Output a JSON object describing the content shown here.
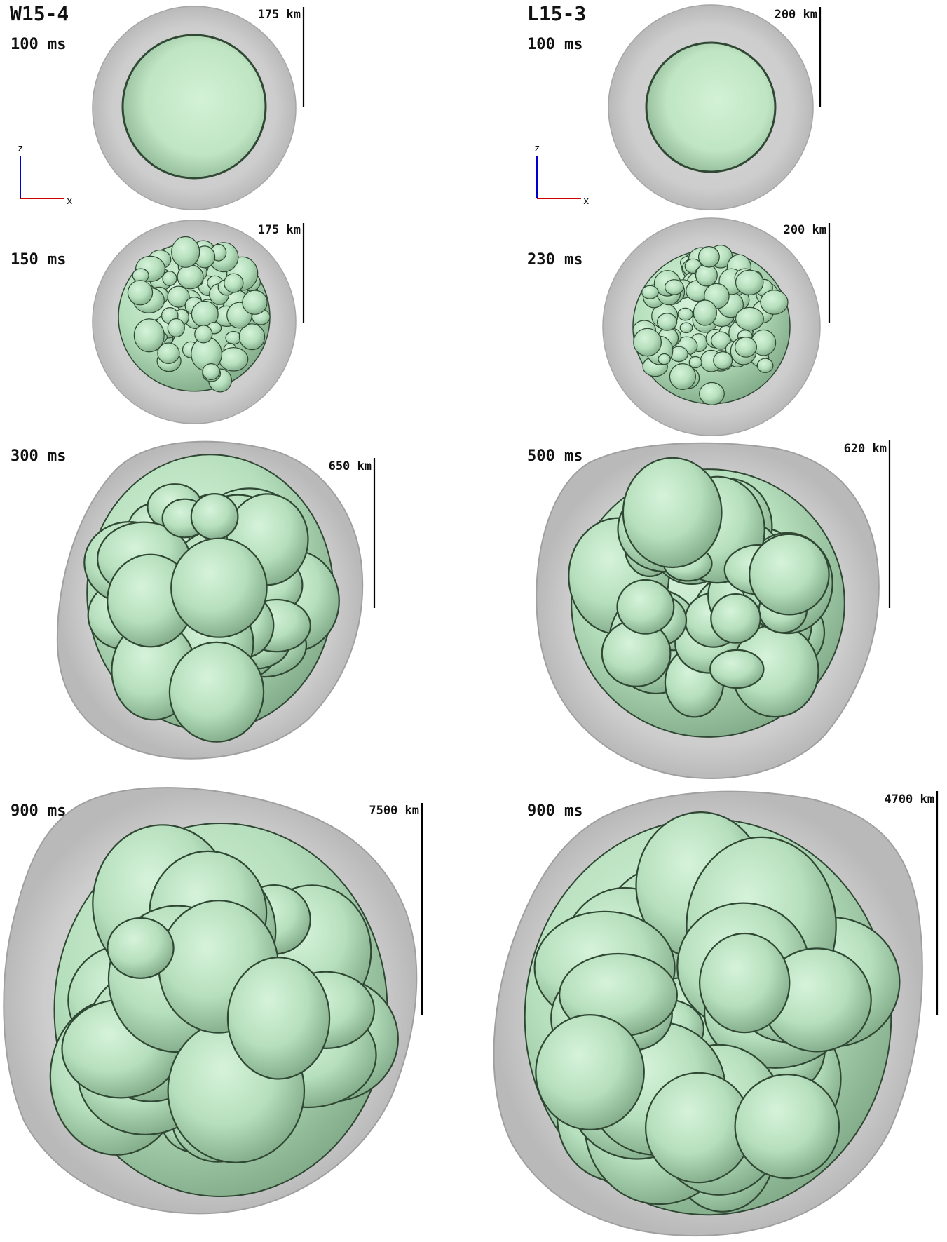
{
  "figure": {
    "models": {
      "left": "W15-4",
      "right": "L15-3"
    },
    "panels": [
      {
        "id": "w-100",
        "time": "100 ms",
        "scale": "175 km"
      },
      {
        "id": "l-100",
        "time": "100 ms",
        "scale": "200 km"
      },
      {
        "id": "w-150",
        "time": "150 ms",
        "scale": "175 km"
      },
      {
        "id": "l-230",
        "time": "230 ms",
        "scale": "200 km"
      },
      {
        "id": "w-300",
        "time": "300 ms",
        "scale": "650 km"
      },
      {
        "id": "l-500",
        "time": "500 ms",
        "scale": "620 km"
      },
      {
        "id": "w-900",
        "time": "900 ms",
        "scale": "7500 km"
      },
      {
        "id": "l-900",
        "time": "900 ms",
        "scale": "4700 km"
      }
    ],
    "axes": {
      "vertical": "z",
      "horizontal": "x"
    },
    "colors": {
      "shock_shell": "#c9c9c9",
      "shock_edge": "#9a9a9a",
      "plume_fill": "#b8e0bf",
      "plume_edge": "#2f4733",
      "axis_z": "#0000cc",
      "axis_x": "#cc0000"
    }
  }
}
